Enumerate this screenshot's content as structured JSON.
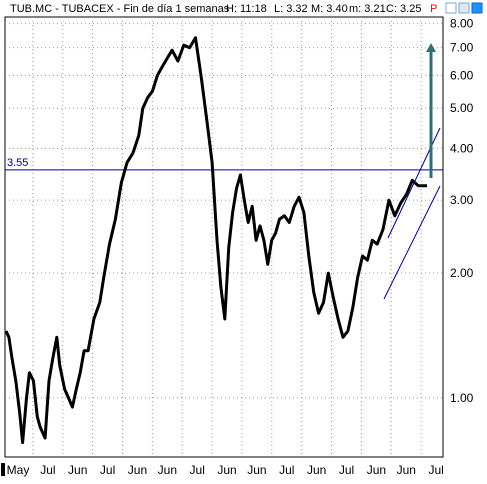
{
  "header": {
    "title": "TUB.MC - TUBACEX - Fin de día 1 semanas",
    "high": "H: 11:18",
    "low": "L: 3.32",
    "mid": "M: 3.40",
    "min": "m: 3.21",
    "close": "C: 3.25",
    "flag": "P"
  },
  "colors": {
    "price": "#000000",
    "horizontal_line": "#00008b",
    "channel": "#00008b",
    "target_arrow": "#2e6f7a",
    "flag": "#ff0000",
    "icon_blue": "#1e90ff"
  },
  "chart_data": {
    "type": "line",
    "scale": "log",
    "ylim": [
      0.72,
      8.3
    ],
    "yticks": [
      "8.00",
      "7.00",
      "6.00",
      "5.00",
      "4.00",
      "3.00",
      "2.00",
      "1.00"
    ],
    "ytick_values": [
      8,
      7,
      6,
      5,
      4,
      3,
      2,
      1
    ],
    "xticks": [
      "May",
      "Jul",
      "Jun",
      "Jul",
      "Jun",
      "Jun",
      "Jul",
      "Jun",
      "Jun",
      "Jul",
      "Jun",
      "Jul",
      "Jun",
      "Jun",
      "Jul"
    ],
    "horizontal_line": {
      "label": "3.55",
      "value": 3.55
    },
    "series": [
      {
        "type": "line",
        "x": [
          0,
          3,
          6,
          10,
          14,
          17,
          21,
          24,
          28,
          32,
          35,
          40,
          44,
          48,
          52,
          55,
          60,
          64,
          68,
          72,
          76,
          80,
          84,
          90,
          96,
          100,
          106,
          112,
          118,
          124,
          130,
          136,
          140,
          145,
          150,
          155,
          160,
          165,
          170,
          176,
          182,
          188,
          194,
          200,
          206,
          211,
          216,
          220,
          224,
          228,
          232,
          236,
          240,
          244,
          248,
          252,
          256,
          260,
          264,
          268,
          272,
          276,
          280,
          285,
          290,
          295,
          300,
          305,
          310,
          315,
          320,
          325,
          330,
          335,
          340,
          345,
          350,
          355,
          360,
          365,
          370,
          375,
          380,
          386,
          392,
          398,
          404,
          410,
          416,
          422,
          428,
          431
        ],
        "values": [
          1.45,
          1.4,
          1.25,
          1.1,
          0.92,
          0.78,
          1.0,
          1.15,
          1.1,
          0.9,
          0.85,
          0.8,
          1.1,
          1.25,
          1.4,
          1.2,
          1.05,
          1.0,
          0.95,
          1.05,
          1.15,
          1.3,
          1.3,
          1.55,
          1.7,
          1.95,
          2.35,
          2.7,
          3.3,
          3.7,
          3.9,
          4.3,
          5.0,
          5.3,
          5.5,
          6.0,
          6.3,
          6.6,
          6.9,
          6.5,
          7.1,
          7.0,
          7.4,
          5.9,
          4.6,
          3.7,
          2.4,
          1.85,
          1.55,
          2.3,
          2.8,
          3.2,
          3.45,
          3.0,
          2.65,
          2.9,
          2.4,
          2.6,
          2.4,
          2.1,
          2.4,
          2.5,
          2.7,
          2.75,
          2.65,
          2.9,
          3.05,
          2.8,
          2.2,
          1.8,
          1.6,
          1.7,
          2.0,
          1.75,
          1.55,
          1.4,
          1.45,
          1.65,
          1.95,
          2.2,
          2.15,
          2.4,
          2.35,
          2.55,
          3.0,
          2.75,
          2.95,
          3.1,
          3.35,
          3.25,
          3.25,
          3.25
        ]
      }
    ]
  }
}
